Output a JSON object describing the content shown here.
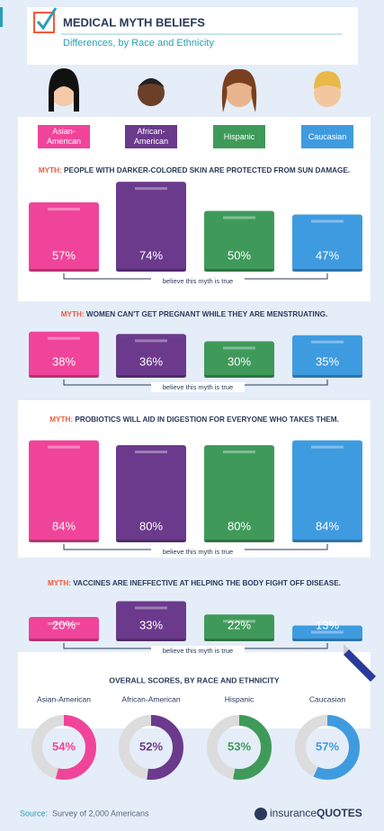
{
  "header": {
    "title": "MEDICAL MYTH BELIEFS",
    "subtitle": "Differences, by Race and Ethnicity"
  },
  "groups": [
    {
      "label": "Asian-American",
      "color": "#f0449a"
    },
    {
      "label": "African-American",
      "color": "#6b3a8c"
    },
    {
      "label": "Hispanic",
      "color": "#3f9a5a"
    },
    {
      "label": "Caucasian",
      "color": "#3f9be0"
    }
  ],
  "chart_data": [
    {
      "type": "bar",
      "myth_label": "MYTH:",
      "title": "PEOPLE WITH DARKER-COLORED SKIN ARE PROTECTED FROM SUN DAMAGE.",
      "values": [
        57,
        74,
        50,
        47
      ],
      "value_labels": [
        "57%",
        "74%",
        "50%",
        "47%"
      ],
      "note": "believe this myth is true"
    },
    {
      "type": "bar",
      "myth_label": "MYTH:",
      "title": "WOMEN CAN'T GET PREGNANT WHILE THEY ARE MENSTRUATING.",
      "values": [
        38,
        36,
        30,
        35
      ],
      "value_labels": [
        "38%",
        "36%",
        "30%",
        "35%"
      ],
      "note": "believe this myth is true"
    },
    {
      "type": "bar",
      "myth_label": "MYTH:",
      "title": "PROBIOTICS WILL AID IN DIGESTION FOR EVERYONE WHO TAKES THEM.",
      "values": [
        84,
        80,
        80,
        84
      ],
      "value_labels": [
        "84%",
        "80%",
        "80%",
        "84%"
      ],
      "note": "believe this myth is true"
    },
    {
      "type": "bar",
      "myth_label": "MYTH:",
      "title": "VACCINES ARE INEFFECTIVE AT HELPING THE BODY FIGHT OFF DISEASE.",
      "values": [
        20,
        33,
        22,
        13
      ],
      "value_labels": [
        "20%",
        "33%",
        "22%",
        "13%"
      ],
      "note": "believe this myth is true"
    },
    {
      "type": "donut",
      "title": "OVERALL SCORES, BY RACE AND ETHNICITY",
      "categories": [
        "Asian-American",
        "African-American",
        "Hispanic",
        "Caucasian"
      ],
      "values": [
        54,
        52,
        53,
        57
      ],
      "value_labels": [
        "54%",
        "52%",
        "53%",
        "57%"
      ],
      "track_color": "#dcdcdc"
    }
  ],
  "footer": {
    "source_label": "Source:",
    "source": "Survey of 2,000 Americans",
    "logo_a": "insurance",
    "logo_b": "QUOTES"
  }
}
